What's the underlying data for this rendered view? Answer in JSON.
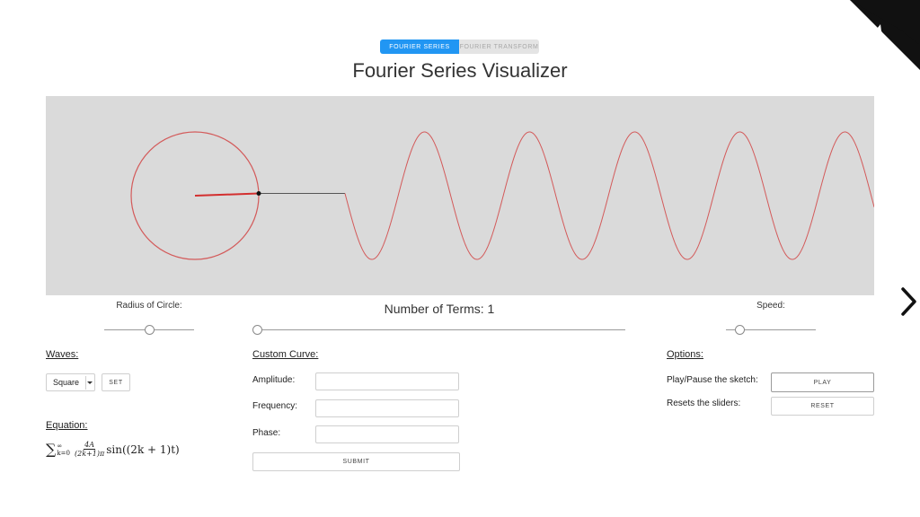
{
  "tabs": [
    {
      "label": "FOURIER SERIES",
      "active": true
    },
    {
      "label": "FOURIER TRANSFORM",
      "active": false
    }
  ],
  "title": "Fourier Series Visualizer",
  "visualization": {
    "background": "#dadada",
    "curve_color": "#d35a5a",
    "terms_visible": 1,
    "wave": "square"
  },
  "sliders": {
    "radius": {
      "label": "Radius of Circle:",
      "value_fraction": 0.5
    },
    "terms": {
      "label": "Number of Terms: 1",
      "value_fraction": 0.0
    },
    "speed": {
      "label": "Speed:",
      "value_fraction": 0.15
    }
  },
  "waves": {
    "heading": "Waves:",
    "selected": "Square",
    "set_label": "SET"
  },
  "equation": {
    "heading": "Equation:",
    "sigma": "∑",
    "upper": "∞",
    "lower": "k=0",
    "numerator": "4A",
    "denominator": "(2k+1)π",
    "rest": "sin((2k + 1)t)"
  },
  "custom_curve": {
    "heading": "Custom Curve:",
    "amplitude_label": "Amplitude:",
    "frequency_label": "Frequency:",
    "phase_label": "Phase:",
    "amplitude_value": "",
    "frequency_value": "",
    "phase_value": "",
    "submit_label": "SUBMIT"
  },
  "options": {
    "heading": "Options:",
    "play_pause_label": "Play/Pause the sketch:",
    "play_label": "PLAY",
    "reset_desc": "Resets the sliders:",
    "reset_label": "RESET"
  },
  "icons": {
    "corner": "github-octocat-icon",
    "next": "chevron-right-icon"
  }
}
